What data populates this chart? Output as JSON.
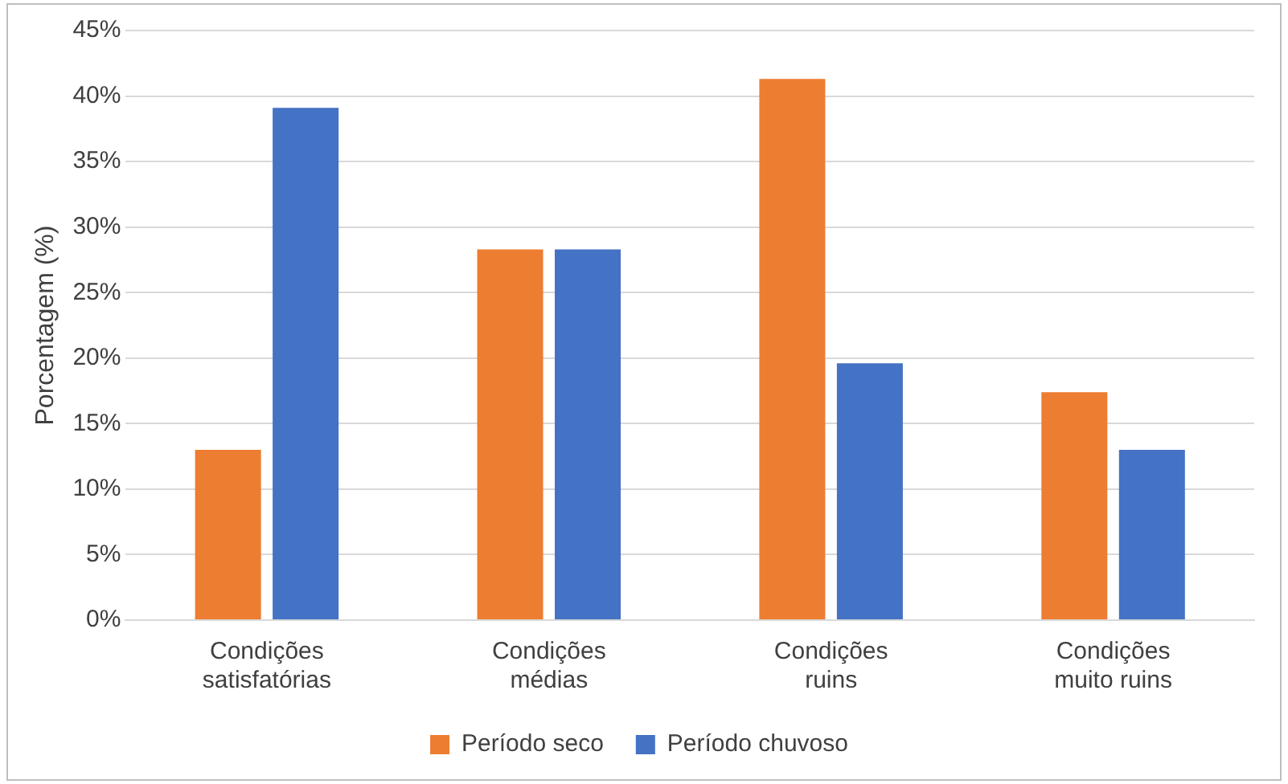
{
  "chart_data": {
    "type": "bar",
    "ylabel": "Porcentagem (%)",
    "categories": [
      "Condições satisfatórias",
      "Condições médias",
      "Condições ruins",
      "Condições muito ruins"
    ],
    "series": [
      {
        "name": "Período seco",
        "color": "#ed7d31",
        "values": [
          13.0,
          28.3,
          41.3,
          17.4
        ]
      },
      {
        "name": "Período chuvoso",
        "color": "#4472c4",
        "values": [
          39.1,
          28.3,
          19.6,
          13.0
        ]
      }
    ],
    "ylim": [
      0,
      45
    ],
    "yticks": [
      {
        "value": 0,
        "label": "0%"
      },
      {
        "value": 5,
        "label": "5%"
      },
      {
        "value": 10,
        "label": "10%"
      },
      {
        "value": 15,
        "label": "15%"
      },
      {
        "value": 20,
        "label": "20%"
      },
      {
        "value": 25,
        "label": "25%"
      },
      {
        "value": 30,
        "label": "30%"
      },
      {
        "value": 35,
        "label": "35%"
      },
      {
        "value": 40,
        "label": "40%"
      },
      {
        "value": 45,
        "label": "45%"
      }
    ],
    "grid": "y",
    "legend": "bottom"
  }
}
